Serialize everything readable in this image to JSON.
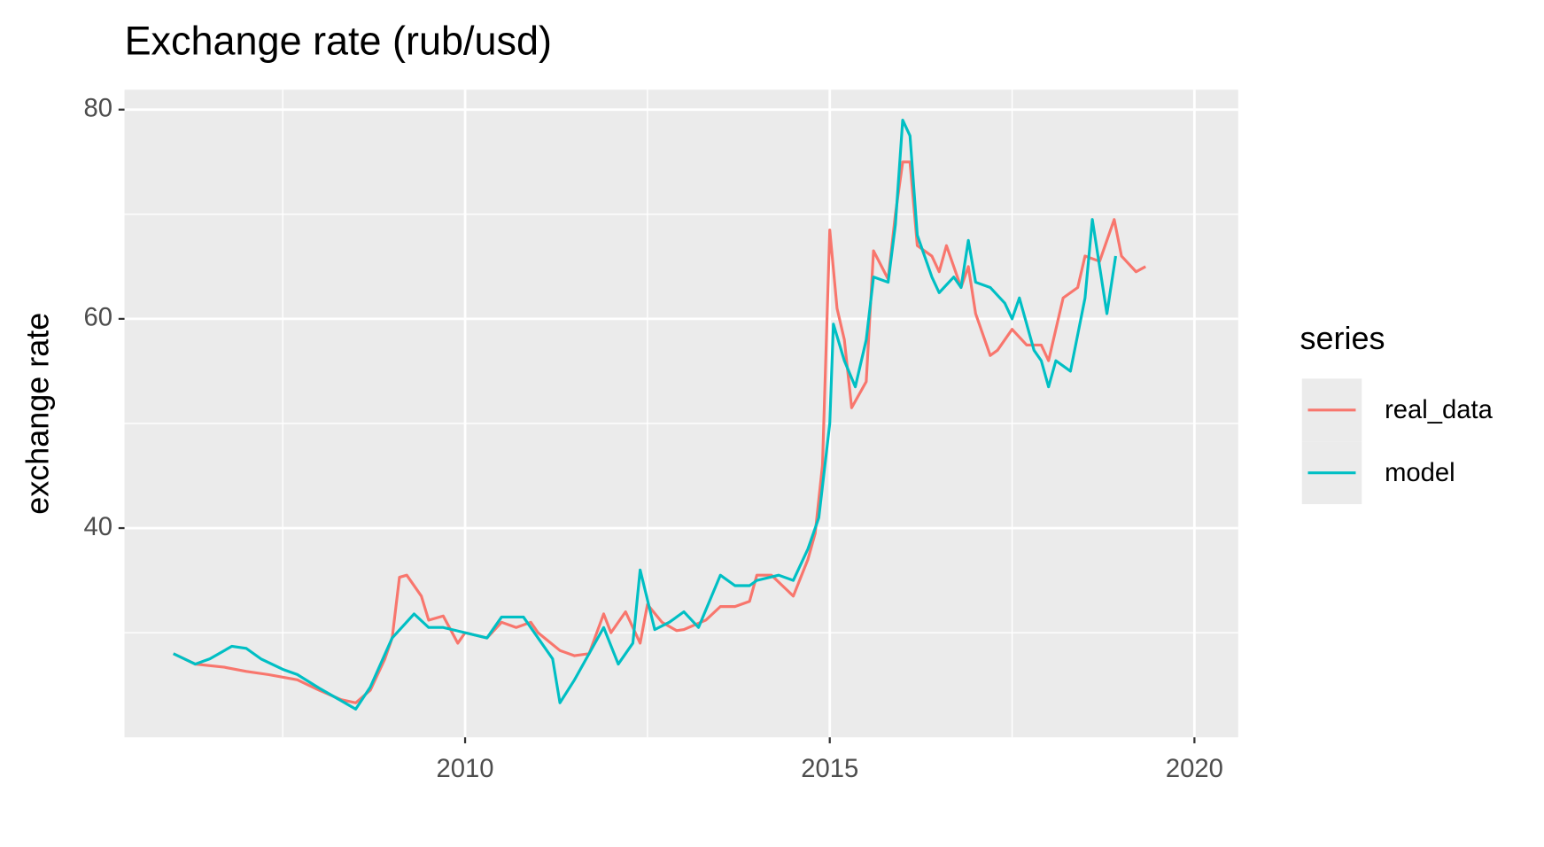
{
  "chart_data": {
    "type": "line",
    "title": "Exchange rate (rub/usd)",
    "y_label": "exchange rate",
    "legend_title": "series",
    "legend_position": "right",
    "grid": true,
    "xlim": [
      2005.33,
      2020.6
    ],
    "ylim": [
      20.0,
      81.9
    ],
    "xticks": [
      2010,
      2015,
      2020
    ],
    "yticks": [
      40,
      60,
      80
    ],
    "series": [
      {
        "name": "real_data",
        "color": "#f8766d",
        "x": [
          2006.0,
          2006.3,
          2006.7,
          2007.0,
          2007.3,
          2007.7,
          2008.0,
          2008.3,
          2008.5,
          2008.7,
          2008.9,
          2009.0,
          2009.1,
          2009.2,
          2009.4,
          2009.5,
          2009.7,
          2009.9,
          2010.0,
          2010.3,
          2010.5,
          2010.7,
          2010.9,
          2011.0,
          2011.3,
          2011.5,
          2011.7,
          2011.9,
          2012.0,
          2012.2,
          2012.4,
          2012.5,
          2012.7,
          2012.9,
          2013.0,
          2013.3,
          2013.5,
          2013.7,
          2013.9,
          2014.0,
          2014.2,
          2014.5,
          2014.7,
          2014.8,
          2014.9,
          2015.0,
          2015.1,
          2015.2,
          2015.3,
          2015.5,
          2015.6,
          2015.8,
          2015.9,
          2016.0,
          2016.1,
          2016.2,
          2016.4,
          2016.5,
          2016.6,
          2016.8,
          2016.9,
          2017.0,
          2017.2,
          2017.3,
          2017.5,
          2017.7,
          2017.9,
          2018.0,
          2018.2,
          2018.4,
          2018.5,
          2018.7,
          2018.9,
          2019.0,
          2019.2,
          2019.33
        ],
        "values": [
          28.0,
          27.0,
          26.7,
          26.3,
          26.0,
          25.5,
          24.5,
          23.6,
          23.3,
          24.5,
          27.5,
          29.5,
          35.3,
          35.5,
          33.5,
          31.2,
          31.6,
          29.0,
          30.0,
          29.5,
          31.0,
          30.5,
          31.0,
          30.0,
          28.3,
          27.8,
          28.0,
          31.8,
          30.0,
          32.0,
          29.0,
          32.7,
          31.0,
          30.2,
          30.3,
          31.2,
          32.5,
          32.5,
          33.0,
          35.5,
          35.5,
          33.5,
          37.0,
          39.5,
          46.0,
          68.5,
          61.0,
          58.0,
          51.5,
          54.0,
          66.5,
          63.8,
          70.0,
          75.0,
          75.0,
          67.0,
          66.0,
          64.5,
          67.0,
          63.0,
          65.0,
          60.5,
          56.5,
          57.0,
          59.0,
          57.5,
          57.5,
          56.0,
          62.0,
          63.0,
          66.0,
          65.5,
          69.5,
          66.0,
          64.5,
          65.0
        ]
      },
      {
        "name": "model",
        "color": "#00bfc4",
        "x": [
          2006.0,
          2006.3,
          2006.5,
          2006.8,
          2007.0,
          2007.2,
          2007.5,
          2007.7,
          2008.0,
          2008.3,
          2008.5,
          2008.7,
          2009.0,
          2009.3,
          2009.5,
          2009.7,
          2010.0,
          2010.3,
          2010.5,
          2010.8,
          2011.0,
          2011.2,
          2011.3,
          2011.5,
          2011.7,
          2011.9,
          2012.1,
          2012.3,
          2012.4,
          2012.6,
          2012.8,
          2013.0,
          2013.2,
          2013.5,
          2013.7,
          2013.9,
          2014.0,
          2014.3,
          2014.5,
          2014.7,
          2014.85,
          2015.0,
          2015.05,
          2015.2,
          2015.35,
          2015.5,
          2015.6,
          2015.8,
          2015.9,
          2016.0,
          2016.1,
          2016.2,
          2016.4,
          2016.5,
          2016.7,
          2016.8,
          2016.9,
          2017.0,
          2017.2,
          2017.4,
          2017.5,
          2017.6,
          2017.8,
          2017.9,
          2018.0,
          2018.1,
          2018.3,
          2018.5,
          2018.6,
          2018.8,
          2018.92
        ],
        "values": [
          28.0,
          27.0,
          27.5,
          28.7,
          28.5,
          27.5,
          26.5,
          26.0,
          24.7,
          23.5,
          22.7,
          24.8,
          29.5,
          31.8,
          30.5,
          30.5,
          30.0,
          29.5,
          31.5,
          31.5,
          29.5,
          27.5,
          23.3,
          25.5,
          28.0,
          30.5,
          27.0,
          29.0,
          36.0,
          30.3,
          31.0,
          32.0,
          30.5,
          35.5,
          34.5,
          34.5,
          35.0,
          35.5,
          35.0,
          38.0,
          41.0,
          50.0,
          59.5,
          56.0,
          53.5,
          58.0,
          64.0,
          63.5,
          69.0,
          79.0,
          77.5,
          68.0,
          64.0,
          62.5,
          64.0,
          63.0,
          67.5,
          63.5,
          63.0,
          61.5,
          60.0,
          62.0,
          57.0,
          56.0,
          53.5,
          56.0,
          55.0,
          62.0,
          69.5,
          60.5,
          66.0
        ]
      }
    ]
  }
}
